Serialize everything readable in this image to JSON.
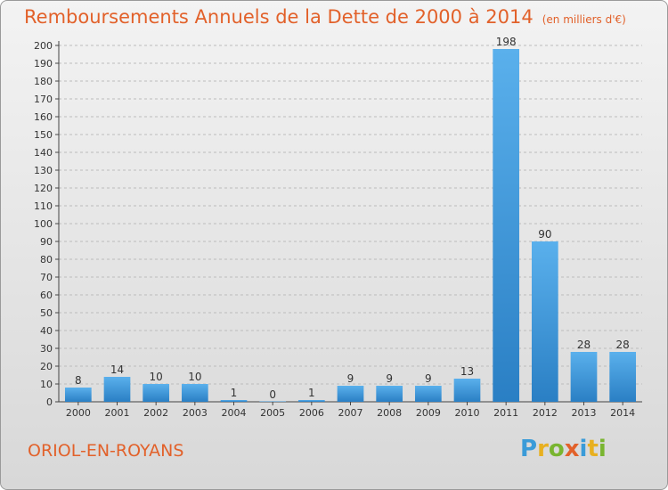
{
  "header": {
    "title": "Remboursements Annuels de la Dette de 2000 à 2014",
    "unit": "(en milliers d'€)"
  },
  "footer": {
    "place": "ORIOL-EN-ROYANS"
  },
  "logo": {
    "text": "Proxiti",
    "letters": [
      {
        "ch": "P",
        "color": "#3a9bd8"
      },
      {
        "ch": "r",
        "color": "#e8b020"
      },
      {
        "ch": "o",
        "color": "#79b530"
      },
      {
        "ch": "x",
        "color": "#e2612a"
      },
      {
        "ch": "i",
        "color": "#3a9bd8"
      },
      {
        "ch": "t",
        "color": "#e8b020"
      },
      {
        "ch": "i",
        "color": "#79b530"
      }
    ]
  },
  "colors": {
    "bar": "#3c96dc",
    "accent": "#e2612a",
    "grid": "#bcbcbc"
  },
  "chart_data": {
    "type": "bar",
    "categories": [
      "2000",
      "2001",
      "2002",
      "2003",
      "2004",
      "2005",
      "2006",
      "2007",
      "2008",
      "2009",
      "2010",
      "2011",
      "2012",
      "2013",
      "2014"
    ],
    "values": [
      8,
      14,
      10,
      10,
      1,
      0,
      1,
      9,
      9,
      9,
      13,
      198,
      90,
      28,
      28
    ],
    "ylim": [
      0,
      200
    ],
    "yticks": [
      0,
      10,
      20,
      30,
      40,
      50,
      60,
      70,
      80,
      90,
      100,
      110,
      120,
      130,
      140,
      150,
      160,
      170,
      180,
      190,
      200
    ],
    "grid": true,
    "title": "Remboursements Annuels de la Dette de 2000 à 2014",
    "xlabel": "",
    "ylabel": ""
  }
}
